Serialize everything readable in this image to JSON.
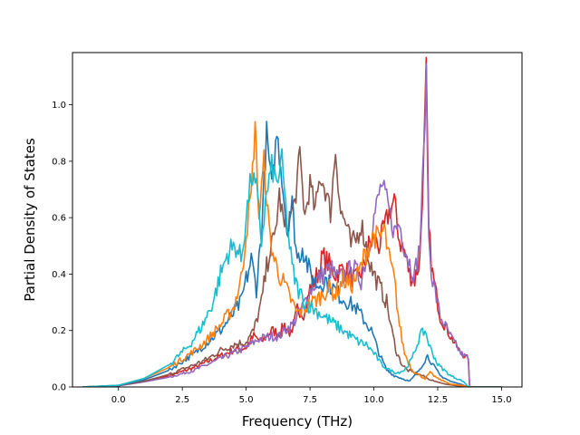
{
  "chart_data": {
    "type": "line",
    "title": "",
    "xlabel": "Frequency (THz)",
    "ylabel": "Partial Density of States",
    "xlim": [
      -1.8,
      15.8
    ],
    "ylim": [
      0.0,
      1.185
    ],
    "xticks": [
      0.0,
      2.5,
      5.0,
      7.5,
      10.0,
      12.5,
      15.0
    ],
    "xtick_labels": [
      "0.0",
      "2.5",
      "5.0",
      "7.5",
      "10.0",
      "12.5",
      "15.0"
    ],
    "yticks": [
      0.0,
      0.2,
      0.4,
      0.6,
      0.8,
      1.0
    ],
    "ytick_labels": [
      "0.0",
      "0.2",
      "0.4",
      "0.6",
      "0.8",
      "1.0"
    ],
    "grid": false,
    "legend": "none",
    "series": [
      {
        "color": "#d62728",
        "x": [
          -1.4,
          0,
          1,
          2,
          3,
          3.5,
          4,
          4.5,
          5,
          5.3,
          5.6,
          6,
          6.3,
          6.5,
          6.8,
          7,
          7.3,
          7.5,
          7.8,
          8,
          8.2,
          8.5,
          8.8,
          9,
          9.3,
          9.6,
          9.8,
          10,
          10.2,
          10.4,
          10.6,
          10.8,
          11,
          11.2,
          11.4,
          11.6,
          11.8,
          11.95,
          12.05,
          12.15,
          12.3,
          12.6,
          13,
          13.4,
          13.7,
          13.75,
          14,
          15
        ],
        "y": [
          0,
          0.005,
          0.02,
          0.04,
          0.07,
          0.09,
          0.11,
          0.13,
          0.14,
          0.18,
          0.16,
          0.2,
          0.19,
          0.22,
          0.18,
          0.28,
          0.26,
          0.35,
          0.4,
          0.46,
          0.44,
          0.4,
          0.42,
          0.4,
          0.38,
          0.42,
          0.5,
          0.52,
          0.5,
          0.56,
          0.62,
          0.66,
          0.52,
          0.48,
          0.4,
          0.38,
          0.45,
          0.8,
          1.13,
          0.55,
          0.4,
          0.25,
          0.18,
          0.12,
          0.1,
          0,
          0,
          0
        ]
      },
      {
        "color": "#9467bd",
        "x": [
          -1.4,
          0,
          1,
          2,
          3,
          3.5,
          4,
          4.5,
          5,
          5.5,
          6,
          6.3,
          6.5,
          6.8,
          7,
          7.3,
          7.5,
          7.8,
          8,
          8.3,
          8.6,
          8.9,
          9.2,
          9.5,
          9.8,
          10,
          10.3,
          10.5,
          10.8,
          11,
          11.2,
          11.4,
          11.6,
          11.8,
          11.95,
          12.05,
          12.15,
          12.3,
          12.6,
          13,
          13.4,
          13.7,
          13.75,
          14,
          15
        ],
        "y": [
          0,
          0.004,
          0.018,
          0.035,
          0.06,
          0.08,
          0.1,
          0.12,
          0.14,
          0.17,
          0.18,
          0.18,
          0.2,
          0.22,
          0.25,
          0.3,
          0.34,
          0.38,
          0.4,
          0.42,
          0.38,
          0.4,
          0.42,
          0.38,
          0.5,
          0.6,
          0.72,
          0.66,
          0.55,
          0.58,
          0.5,
          0.44,
          0.4,
          0.5,
          0.82,
          1.1,
          0.52,
          0.38,
          0.25,
          0.18,
          0.12,
          0.1,
          0,
          0,
          0
        ]
      },
      {
        "color": "#8c564b",
        "x": [
          -1.4,
          0,
          1,
          2,
          3,
          3.5,
          4,
          4.5,
          5,
          5.3,
          5.6,
          5.9,
          6.1,
          6.3,
          6.5,
          6.7,
          6.9,
          7.1,
          7.3,
          7.5,
          7.7,
          7.9,
          8.1,
          8.3,
          8.5,
          8.7,
          8.9,
          9.1,
          9.3,
          9.5,
          9.7,
          9.9,
          10.1,
          10.3,
          10.5,
          10.7,
          10.9,
          11.1,
          11.3,
          11.6,
          11.9,
          12.1,
          12.4,
          12.8,
          13.2,
          13.6,
          13.7,
          14,
          15
        ],
        "y": [
          0,
          0.005,
          0.02,
          0.045,
          0.08,
          0.1,
          0.13,
          0.15,
          0.16,
          0.2,
          0.3,
          0.48,
          0.52,
          0.68,
          0.56,
          0.6,
          0.65,
          0.82,
          0.6,
          0.72,
          0.62,
          0.75,
          0.7,
          0.62,
          0.84,
          0.62,
          0.58,
          0.5,
          0.52,
          0.58,
          0.5,
          0.42,
          0.38,
          0.34,
          0.3,
          0.2,
          0.12,
          0.08,
          0.06,
          0.05,
          0.04,
          0.03,
          0.02,
          0.01,
          0.005,
          0.002,
          0,
          0,
          0
        ]
      },
      {
        "color": "#1f77b4",
        "x": [
          -1.4,
          0,
          1,
          2,
          3,
          3.5,
          4,
          4.5,
          4.8,
          5,
          5.2,
          5.4,
          5.6,
          5.8,
          6,
          6.2,
          6.4,
          6.6,
          6.8,
          7,
          7.2,
          7.5,
          7.8,
          8.1,
          8.4,
          8.7,
          9,
          9.3,
          9.6,
          9.9,
          10.2,
          10.5,
          10.8,
          11.1,
          11.4,
          11.7,
          11.9,
          12.1,
          12.3,
          12.6,
          13,
          13.4,
          13.7,
          14,
          15
        ],
        "y": [
          0,
          0.005,
          0.025,
          0.06,
          0.12,
          0.16,
          0.2,
          0.26,
          0.3,
          0.38,
          0.45,
          0.35,
          0.55,
          0.9,
          0.7,
          0.9,
          0.75,
          0.55,
          0.65,
          0.45,
          0.5,
          0.4,
          0.36,
          0.38,
          0.35,
          0.32,
          0.3,
          0.28,
          0.24,
          0.2,
          0.12,
          0.06,
          0.04,
          0.03,
          0.02,
          0.05,
          0.08,
          0.11,
          0.08,
          0.04,
          0.02,
          0.01,
          0,
          0,
          0
        ]
      },
      {
        "color": "#ff7f0e",
        "x": [
          -1.4,
          0,
          1,
          2,
          3,
          3.5,
          4,
          4.5,
          4.8,
          5,
          5.2,
          5.35,
          5.5,
          5.7,
          5.9,
          6.1,
          6.3,
          6.5,
          6.8,
          7,
          7.3,
          7.6,
          7.9,
          8.2,
          8.5,
          8.8,
          9.1,
          9.4,
          9.7,
          10,
          10.2,
          10.4,
          10.6,
          10.8,
          11,
          11.2,
          11.5,
          11.8,
          12,
          12.2,
          12.5,
          13,
          13.5,
          13.7,
          14,
          15
        ],
        "y": [
          0,
          0.006,
          0.03,
          0.07,
          0.13,
          0.17,
          0.22,
          0.28,
          0.38,
          0.55,
          0.68,
          0.93,
          0.6,
          0.8,
          0.55,
          0.45,
          0.4,
          0.36,
          0.3,
          0.26,
          0.28,
          0.3,
          0.32,
          0.35,
          0.33,
          0.38,
          0.36,
          0.4,
          0.48,
          0.54,
          0.52,
          0.56,
          0.45,
          0.38,
          0.22,
          0.12,
          0.06,
          0.04,
          0.03,
          0.05,
          0.03,
          0.01,
          0.005,
          0,
          0,
          0
        ]
      },
      {
        "color": "#17becf",
        "x": [
          -1.4,
          0,
          1,
          2,
          2.8,
          3.3,
          3.7,
          4,
          4.3,
          4.6,
          4.8,
          5,
          5.2,
          5.4,
          5.6,
          5.8,
          6,
          6.2,
          6.4,
          6.6,
          6.8,
          7,
          7.3,
          7.6,
          7.9,
          8.2,
          8.5,
          8.8,
          9.1,
          9.4,
          9.7,
          10,
          10.3,
          10.6,
          10.9,
          11.2,
          11.5,
          11.8,
          12,
          12.2,
          12.5,
          13,
          13.5,
          13.7,
          14,
          15
        ],
        "y": [
          0,
          0.006,
          0.03,
          0.08,
          0.15,
          0.22,
          0.3,
          0.4,
          0.48,
          0.5,
          0.45,
          0.6,
          0.75,
          0.7,
          0.52,
          0.68,
          0.78,
          0.72,
          0.8,
          0.58,
          0.42,
          0.35,
          0.3,
          0.28,
          0.26,
          0.24,
          0.22,
          0.2,
          0.18,
          0.16,
          0.15,
          0.12,
          0.08,
          0.06,
          0.05,
          0.06,
          0.1,
          0.18,
          0.2,
          0.14,
          0.08,
          0.04,
          0.02,
          0,
          0,
          0
        ]
      }
    ]
  }
}
